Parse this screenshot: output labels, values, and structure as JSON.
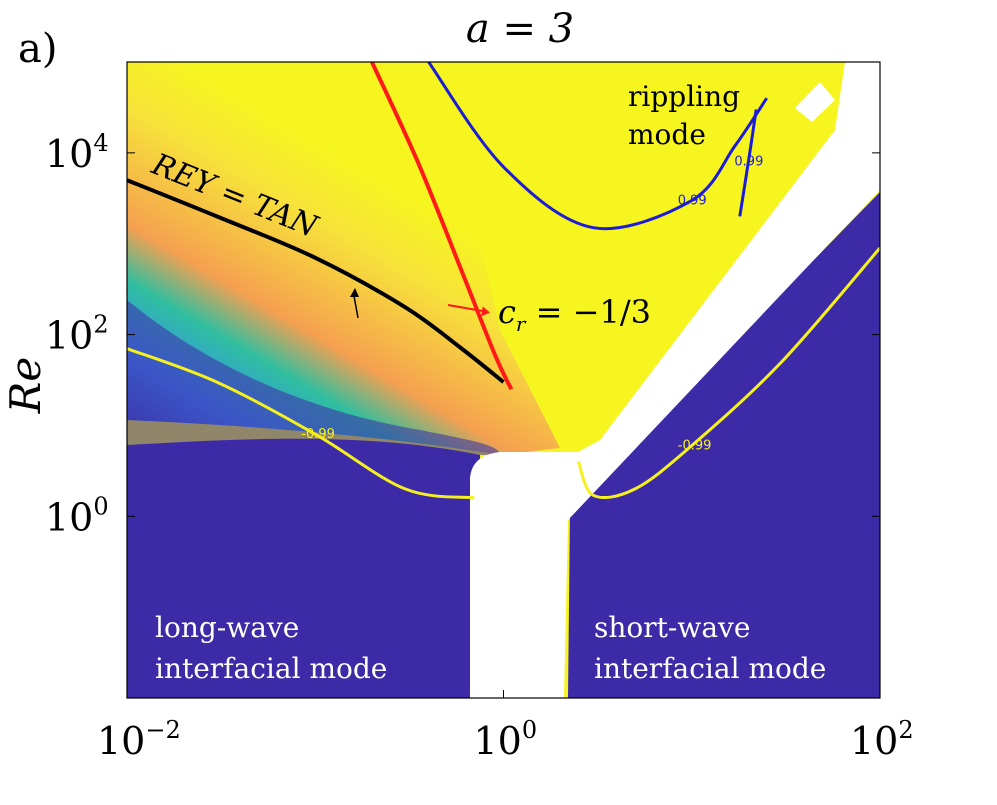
{
  "chart_data": {
    "type": "heatmap",
    "panel_label": "a)",
    "title": "a = 3",
    "xlabel": "",
    "ylabel": "Re",
    "xscale": "log",
    "yscale": "log",
    "xlim": [
      0.01,
      100
    ],
    "ylim": [
      0.01,
      100000
    ],
    "xticks": [
      {
        "value": 0.01,
        "base": "10",
        "exp": "−2"
      },
      {
        "value": 1,
        "base": "10",
        "exp": "0"
      },
      {
        "value": 100,
        "base": "10",
        "exp": "2"
      }
    ],
    "yticks": [
      {
        "value": 1,
        "base": "10",
        "exp": "0"
      },
      {
        "value": 100,
        "base": "10",
        "exp": "2"
      },
      {
        "value": 10000,
        "base": "10",
        "exp": "4"
      }
    ],
    "colors": {
      "low": "#3d2aa6",
      "blue": "#3a8ff0",
      "teal": "#2fbfa0",
      "orange": "#f5a050",
      "high": "#f6f520",
      "rey_tan": "#000000",
      "cr_line": "#ff1a1a",
      "contour_pos": "#1c1cd6",
      "contour_neg": "#f5f020",
      "gap": "#ffffff"
    },
    "regions": [
      {
        "name": "rippling mode",
        "lines": [
          "rippling",
          "mode"
        ],
        "text_color": "#000000"
      },
      {
        "name": "long-wave interfacial mode",
        "lines": [
          "long-wave",
          "interfacial mode"
        ],
        "text_color": "#ffffff"
      },
      {
        "name": "short-wave interfacial mode",
        "lines": [
          "short-wave",
          "interfacial mode"
        ],
        "text_color": "#ffffff"
      }
    ],
    "curves": [
      {
        "name": "REY = TAN",
        "label": "REY = TAN",
        "color": "#000000",
        "x": [
          0.01,
          0.03,
          0.1,
          0.3,
          0.6,
          1.0
        ],
        "y": [
          5000,
          2000,
          700,
          200,
          70,
          30
        ]
      },
      {
        "name": "c_r = -1/3",
        "label_main": "c",
        "label_sub": "r",
        "label_rest": " = −1/3",
        "color": "#ff1a1a",
        "x": [
          0.2,
          0.35,
          0.6,
          0.9,
          1.1
        ],
        "y": [
          100000,
          8000,
          500,
          60,
          25
        ]
      }
    ],
    "contours": [
      {
        "level": 0.99,
        "label": "0.99",
        "color": "#1c1cd6",
        "segments": [
          {
            "x": [
              0.4,
              1.0,
              3.0,
              10.0,
              17.0,
              25.0
            ],
            "y": [
              100000,
              7000,
              1500,
              3000,
              12000,
              40000
            ]
          },
          {
            "x": [
              18.0,
              20.0,
              22.0
            ],
            "y": [
              2000,
              8000,
              30000
            ]
          }
        ]
      },
      {
        "level": -0.99,
        "label": "-0.99",
        "color": "#f5f020",
        "segments": [
          {
            "x": [
              0.01,
              0.03,
              0.1,
              0.3,
              0.7
            ],
            "y": [
              70,
              30,
              8,
              2,
              1.6
            ]
          },
          {
            "x": [
              2.5,
              3.0,
              5.0,
              10.0,
              30.0,
              100.0
            ],
            "y": [
              4,
              1.7,
              2,
              6,
              50,
              900
            ]
          }
        ]
      }
    ]
  }
}
